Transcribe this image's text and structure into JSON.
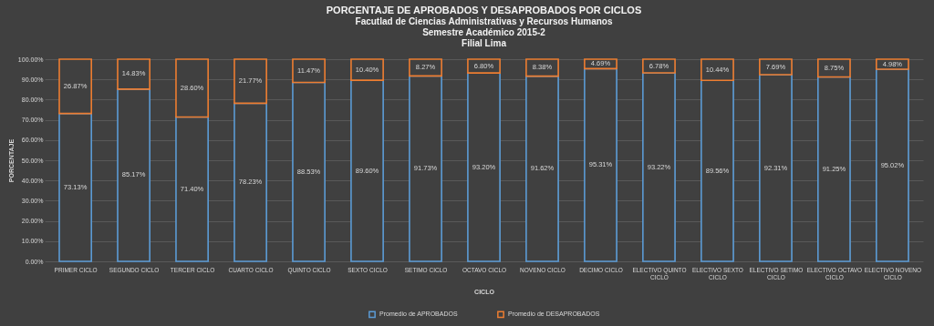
{
  "chart_data": {
    "type": "bar",
    "stacked": true,
    "title": "PORCENTAJE DE APROBADOS Y DESAPROBADOS POR CICLOS",
    "subtitle": "Facutlad de Ciencias Administrativas y Recursos Humanos\nSemestre Académico 2015-2\nFilial Lima",
    "xlabel": "CICLO",
    "ylabel": "PORCENTAJE",
    "categories": [
      "PRIMER CICLO",
      "SEGUNDO CICLO",
      "TERCER CICLO",
      "CUARTO CICLO",
      "QUINTO CICLO",
      "SEXTO CICLO",
      "SETIMO CICLO",
      "OCTAVO CICLO",
      "NOVENO CICLO",
      "DECIMO CICLO",
      "ELECTIVO QUINTO CICLO",
      "ELECTIVO SEXTO CICLO",
      "ELECTIVO SETIMO CICLO",
      "ELECTIVO OCTAVO CICLO",
      "ELECTIVO NOVENO CICLO"
    ],
    "series": [
      {
        "name": "Promedio de APROBADOS",
        "color": "#5b9bd5",
        "values": [
          73.13,
          85.17,
          71.4,
          78.23,
          88.53,
          89.6,
          91.73,
          93.2,
          91.62,
          95.31,
          93.22,
          89.56,
          92.31,
          91.25,
          95.02
        ],
        "value_labels": [
          "73.13%",
          "85.17%",
          "71.40%",
          "78.23%",
          "88.53%",
          "89.60%",
          "91.73%",
          "93.20%",
          "91.62%",
          "95.31%",
          "93.22%",
          "89.56%",
          "92.31%",
          "91.25%",
          "95.02%"
        ]
      },
      {
        "name": "Promedio de DESAPROBADOS",
        "color": "#ed7d31",
        "values": [
          26.87,
          14.83,
          28.6,
          21.77,
          11.47,
          10.4,
          8.27,
          6.8,
          8.38,
          4.69,
          6.78,
          10.44,
          7.69,
          8.75,
          4.98
        ],
        "value_labels": [
          "26.87%",
          "14.83%",
          "28.60%",
          "21.77%",
          "11.47%",
          "10.40%",
          "8.27%",
          "6.80%",
          "8.38%",
          "4.69%",
          "6.78%",
          "10.44%",
          "7.69%",
          "8.75%",
          "4.98%"
        ]
      }
    ],
    "ylim": [
      0,
      100
    ],
    "yticks": [
      {
        "value": 0,
        "label": "0.00%"
      },
      {
        "value": 10,
        "label": "10.00%"
      },
      {
        "value": 20,
        "label": "20.00%"
      },
      {
        "value": 30,
        "label": "30.00%"
      },
      {
        "value": 40,
        "label": "40.00%"
      },
      {
        "value": 50,
        "label": "50.00%"
      },
      {
        "value": 60,
        "label": "60.00%"
      },
      {
        "value": 70,
        "label": "70.00%"
      },
      {
        "value": 80,
        "label": "80.00%"
      },
      {
        "value": 90,
        "label": "90.00%"
      },
      {
        "value": 100,
        "label": "100.00%"
      }
    ],
    "grid": true,
    "legend": "bottom"
  }
}
